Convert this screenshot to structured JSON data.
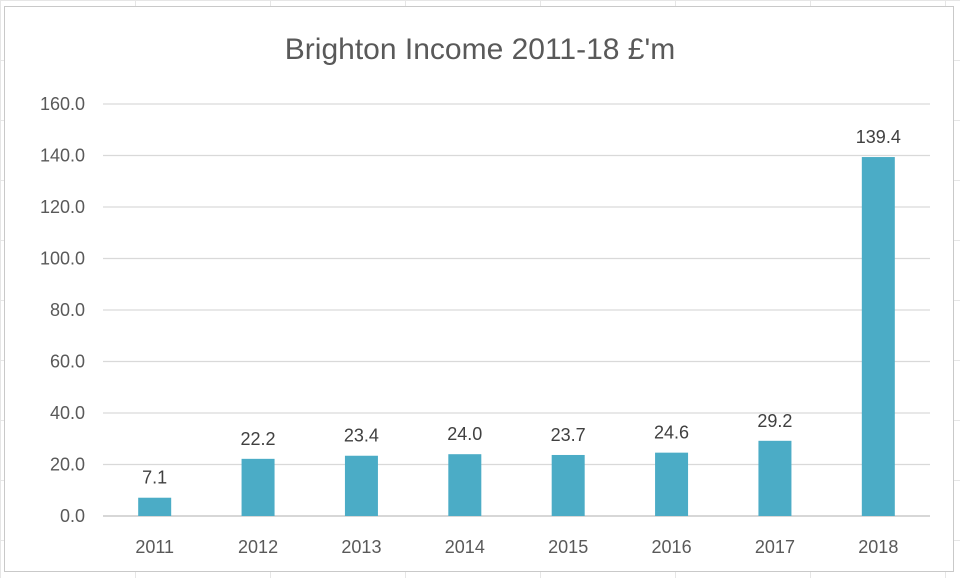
{
  "chart_data": {
    "type": "bar",
    "title": "Brighton Income 2011-18 £'m",
    "categories": [
      "2011",
      "2012",
      "2013",
      "2014",
      "2015",
      "2016",
      "2017",
      "2018"
    ],
    "values": [
      7.1,
      22.2,
      23.4,
      24.0,
      23.7,
      24.6,
      29.2,
      139.4
    ],
    "data_labels": [
      "7.1",
      "22.2",
      "23.4",
      "24.0",
      "23.7",
      "24.6",
      "29.2",
      "139.4"
    ],
    "y_ticks": [
      "0.0",
      "20.0",
      "40.0",
      "60.0",
      "80.0",
      "100.0",
      "120.0",
      "140.0",
      "160.0"
    ],
    "ylim": [
      0,
      160
    ],
    "grid": true,
    "legend": "none",
    "bar_color": "#4bacc6",
    "grid_color": "#d9d9d9"
  }
}
